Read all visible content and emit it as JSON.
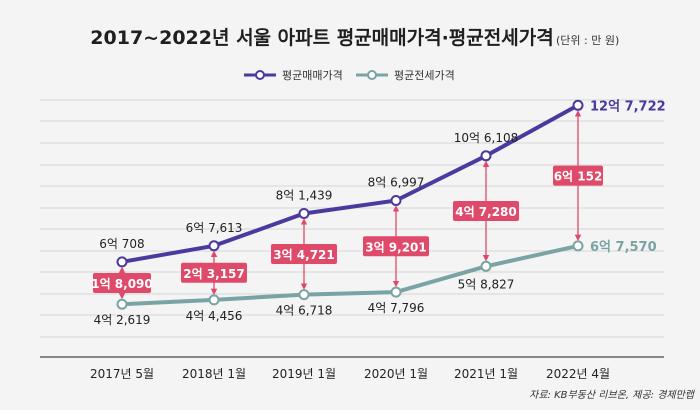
{
  "chart_data": {
    "type": "line",
    "title": "2017~2022년 서울 아파트 평균매매가격·평균전세가격",
    "unit_note": "(단위 : 만 원)",
    "source": "자료: KB부동산 리브온, 제공: 경제만랩",
    "categories": [
      "2017년 5월",
      "2018년 1월",
      "2019년 1월",
      "2020년 1월",
      "2021년 1월",
      "2022년 4월"
    ],
    "ylim": [
      20000,
      130000
    ],
    "legend_position": "top-center",
    "grid": "horizontal",
    "series": [
      {
        "name": "평균매매가격",
        "color": "#4b3a9e",
        "values": [
          60708,
          67613,
          81439,
          86997,
          106108,
          127722
        ],
        "labels": [
          "6억 708",
          "6억 7,613",
          "8억 1,439",
          "8억 6,997",
          "10억 6,108",
          "12억 7,722"
        ]
      },
      {
        "name": "평균전세가격",
        "color": "#7aa3a3",
        "values": [
          42619,
          44456,
          46718,
          47796,
          58827,
          67570
        ],
        "labels": [
          "4억 2,619",
          "4억 4,456",
          "4억 6,718",
          "4억 7,796",
          "5억 8,827",
          "6억 7,570"
        ]
      }
    ],
    "gap": {
      "color": "#e04a6a",
      "labels": [
        "1억 8,090",
        "2억 3,157",
        "3억 4,721",
        "3억 9,201",
        "4억 7,280",
        "6억 152"
      ]
    }
  }
}
